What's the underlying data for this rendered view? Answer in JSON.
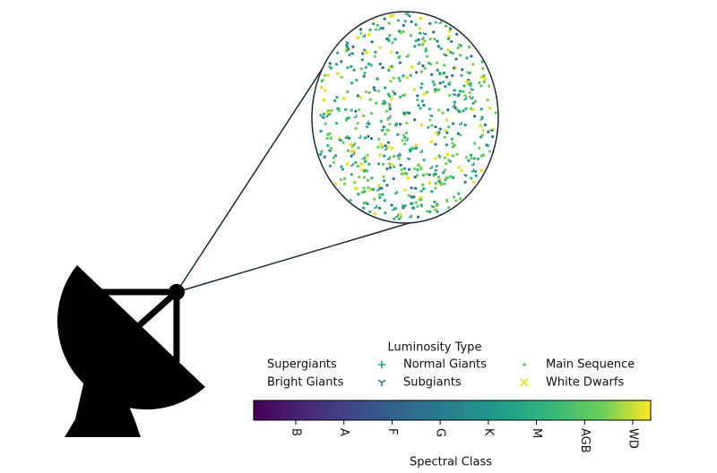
{
  "legend": {
    "title": "Luminosity Type",
    "entries": [
      {
        "name": "Supergiants",
        "marker": "none",
        "color": "#ffffff"
      },
      {
        "name": "Bright Giants",
        "marker": "none",
        "color": "#ffffff"
      },
      {
        "name": "Normal Giants",
        "marker": "plus",
        "color": "#2a9d8f"
      },
      {
        "name": "Subgiants",
        "marker": "tri",
        "color": "#21818c"
      },
      {
        "name": "Main Sequence",
        "marker": "dot",
        "color": "#5ec962"
      },
      {
        "name": "White Dwarfs",
        "marker": "x",
        "color": "#e4e419"
      }
    ]
  },
  "colorbar": {
    "label": "Spectral Class",
    "ticks": [
      "B",
      "A",
      "F",
      "G",
      "K",
      "M",
      "AGB",
      "WD"
    ]
  }
}
